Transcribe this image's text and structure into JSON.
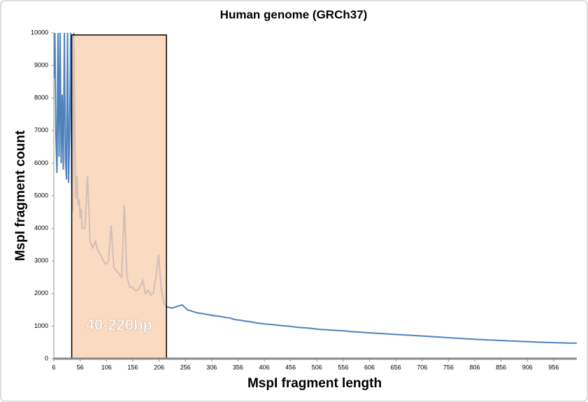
{
  "chart_data": {
    "type": "line",
    "title": "Human genome (GRCh37)",
    "xlabel": "MspI fragment length",
    "ylabel": "MspI fragment count",
    "annotation": "40-220bp",
    "highlight_range": [
      40,
      220
    ],
    "color": "#4f81bd",
    "xlim": [
      6,
      1000
    ],
    "ylim": [
      0,
      10000
    ],
    "xticks": [
      6,
      56,
      106,
      156,
      206,
      256,
      306,
      356,
      406,
      456,
      506,
      556,
      606,
      656,
      706,
      756,
      806,
      856,
      906,
      956
    ],
    "yticks": [
      0,
      1000,
      2000,
      3000,
      4000,
      5000,
      6000,
      7000,
      8000,
      9000,
      10000
    ],
    "x": [
      6,
      8,
      10,
      12,
      14,
      16,
      18,
      20,
      22,
      24,
      26,
      28,
      30,
      32,
      34,
      36,
      38,
      40,
      42,
      44,
      46,
      48,
      50,
      52,
      54,
      56,
      58,
      60,
      65,
      70,
      75,
      80,
      85,
      90,
      95,
      100,
      105,
      110,
      115,
      120,
      125,
      130,
      135,
      140,
      145,
      150,
      155,
      160,
      165,
      170,
      175,
      180,
      185,
      190,
      195,
      200,
      205,
      210,
      215,
      220,
      230,
      240,
      250,
      260,
      270,
      280,
      290,
      300,
      310,
      320,
      330,
      340,
      350,
      360,
      370,
      380,
      390,
      400,
      410,
      420,
      430,
      440,
      450,
      460,
      470,
      480,
      490,
      500,
      510,
      520,
      530,
      540,
      550,
      560,
      570,
      580,
      590,
      600,
      610,
      620,
      630,
      640,
      650,
      660,
      670,
      680,
      690,
      700,
      710,
      720,
      730,
      740,
      750,
      760,
      770,
      780,
      790,
      800,
      810,
      820,
      830,
      840,
      850,
      860,
      870,
      880,
      890,
      900,
      910,
      920,
      930,
      940,
      950,
      960,
      970,
      980,
      990,
      1000
    ],
    "values": [
      8600,
      10000,
      6800,
      5700,
      10000,
      6200,
      10000,
      6000,
      8100,
      5800,
      10000,
      6100,
      5500,
      10000,
      5400,
      7000,
      10000,
      5500,
      4500,
      10000,
      6500,
      4900,
      5600,
      4700,
      4900,
      4300,
      4600,
      4000,
      4000,
      5600,
      3600,
      3400,
      3600,
      3300,
      3200,
      3000,
      2900,
      3000,
      4100,
      2800,
      2700,
      2600,
      2500,
      4700,
      2500,
      2200,
      2200,
      2100,
      2100,
      2200,
      2400,
      2000,
      2100,
      1950,
      2000,
      2500,
      3200,
      2200,
      1700,
      1600,
      1550,
      1600,
      1650,
      1500,
      1450,
      1400,
      1380,
      1350,
      1320,
      1300,
      1270,
      1250,
      1200,
      1180,
      1150,
      1130,
      1100,
      1080,
      1060,
      1050,
      1030,
      1010,
      1000,
      980,
      960,
      950,
      940,
      920,
      900,
      890,
      880,
      870,
      860,
      850,
      830,
      820,
      810,
      800,
      790,
      780,
      770,
      760,
      750,
      740,
      730,
      720,
      710,
      700,
      690,
      680,
      670,
      660,
      650,
      640,
      630,
      620,
      610,
      600,
      590,
      585,
      575,
      570,
      560,
      555,
      545,
      540,
      530,
      525,
      520,
      510,
      505,
      500,
      495,
      490,
      485,
      480,
      475,
      480
    ]
  }
}
